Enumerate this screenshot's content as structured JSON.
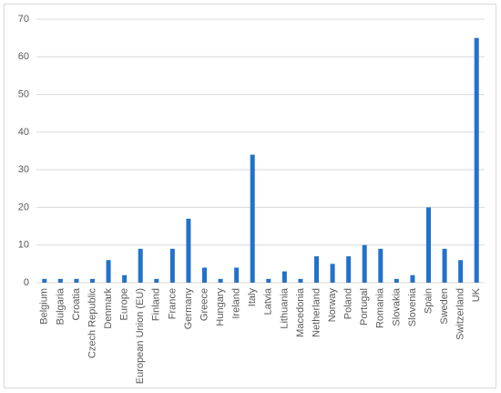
{
  "chart_data": {
    "type": "bar",
    "categories": [
      "Belgium",
      "Bulgaria",
      "Croatia",
      "Czech Republic",
      "Denmark",
      "Europe",
      "European Union (EU)",
      "Finland",
      "France",
      "Germany",
      "Greece",
      "Hungary",
      "Ireland",
      "Italy",
      "Latvia",
      "Lithuania",
      "Macedonia",
      "Netherland",
      "Norway",
      "Poland",
      "Portugal",
      "Romania",
      "Slovakia",
      "Slovenia",
      "Spain",
      "Sweden",
      "Switzerland",
      "UK"
    ],
    "values": [
      1,
      1,
      1,
      1,
      6,
      2,
      9,
      1,
      9,
      17,
      4,
      1,
      4,
      34,
      1,
      3,
      1,
      7,
      5,
      7,
      10,
      9,
      1,
      2,
      20,
      9,
      6,
      65
    ],
    "color": "#2272c9",
    "ylim": [
      0,
      70
    ],
    "yticks": [
      0,
      10,
      20,
      30,
      40,
      50,
      60,
      70
    ],
    "grid": true
  }
}
